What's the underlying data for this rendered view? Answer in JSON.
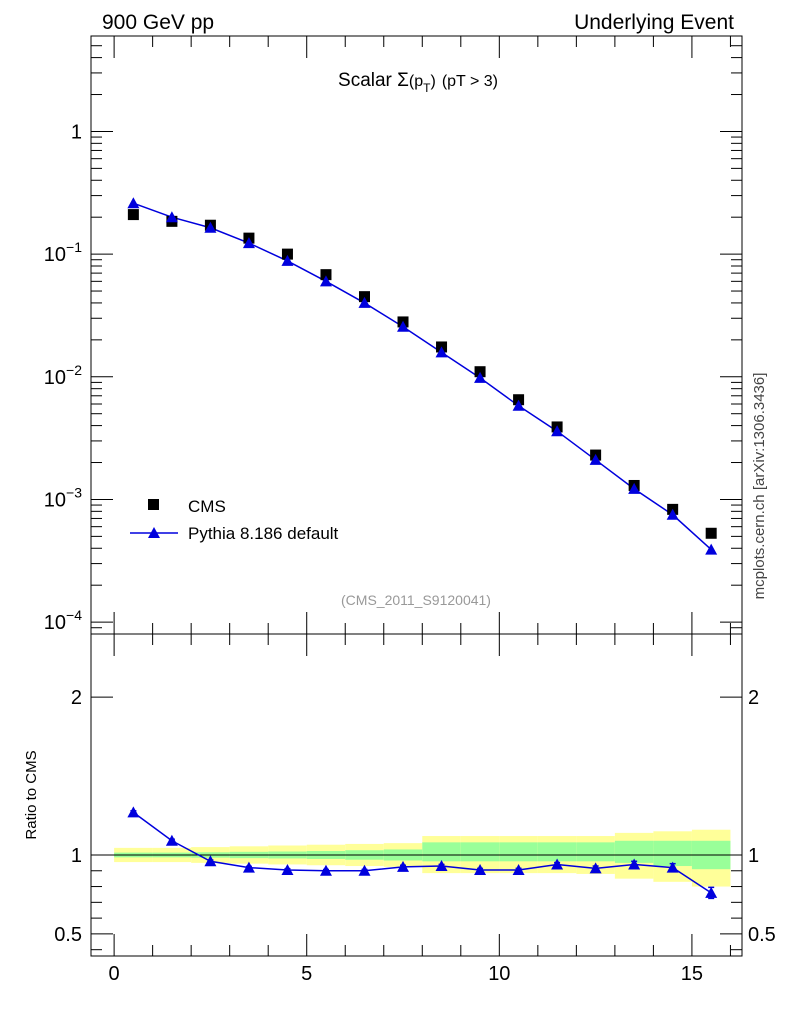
{
  "header": {
    "left": "900 GeV pp",
    "right": "Underlying Event"
  },
  "side_label": "mcplots.cern.ch [arXiv:1306.3436]",
  "watermark": "(CMS_2011_S9120041)",
  "colors": {
    "model": "#0000dd",
    "band_inner": "#99ff99",
    "band_outer": "#ffff99",
    "data": "#000000"
  },
  "chart_data": [
    {
      "type": "scatter",
      "title": "Scalar Σ(p_T) (pT >  3)",
      "title_parts": {
        "prefix": "Scalar ",
        "sigma": "Σ",
        "open": "(p",
        "sub": "T",
        "close": ")",
        "cut": "(pT >  3)"
      },
      "xlim": [
        -0.6,
        16.3
      ],
      "ylim": [
        8e-05,
        6
      ],
      "yscale": "log",
      "yticks": [
        {
          "value": 0.0001,
          "base": "10",
          "exp": "−4"
        },
        {
          "value": 0.001,
          "base": "10",
          "exp": "−3"
        },
        {
          "value": 0.01,
          "base": "10",
          "exp": "−2"
        },
        {
          "value": 0.1,
          "base": "10",
          "exp": "−1"
        },
        {
          "value": 1,
          "base": "1",
          "exp": ""
        }
      ],
      "legend_position": "bottom-left",
      "series": [
        {
          "name": "CMS",
          "marker": "square",
          "x": [
            0.5,
            1.5,
            2.5,
            3.5,
            4.5,
            5.5,
            6.5,
            7.5,
            8.5,
            9.5,
            10.5,
            11.5,
            12.5,
            13.5,
            14.5,
            15.5
          ],
          "y": [
            0.21,
            0.185,
            0.172,
            0.135,
            0.1,
            0.068,
            0.045,
            0.028,
            0.0175,
            0.011,
            0.0065,
            0.0039,
            0.0023,
            0.0013,
            0.00083,
            0.00053
          ]
        },
        {
          "name": "Pythia 8.186 default",
          "marker": "triangle",
          "x": [
            0.5,
            1.5,
            2.5,
            3.5,
            4.5,
            5.5,
            6.5,
            7.5,
            8.5,
            9.5,
            10.5,
            11.5,
            12.5,
            13.5,
            14.5,
            15.5
          ],
          "y": [
            0.26,
            0.2,
            0.164,
            0.123,
            0.088,
            0.06,
            0.04,
            0.0256,
            0.0158,
            0.0098,
            0.0058,
            0.0036,
            0.0021,
            0.00122,
            0.00075,
            0.00039
          ]
        }
      ]
    },
    {
      "type": "line",
      "ylabel": "Ratio to CMS",
      "xlim": [
        -0.6,
        16.3
      ],
      "ylim": [
        0.36,
        2.4
      ],
      "xticks": [
        0,
        5,
        10,
        15
      ],
      "yticks": [
        0.5,
        1,
        2
      ],
      "ytick_labels": [
        "0.5",
        "1",
        "2"
      ],
      "reference_line": 1,
      "bands": {
        "edges": [
          0,
          1,
          2,
          3,
          4,
          5,
          6,
          7,
          8,
          9,
          10,
          11,
          12,
          13,
          14,
          15,
          16
        ],
        "inner_lo": [
          0.985,
          0.985,
          0.983,
          0.98,
          0.978,
          0.975,
          0.97,
          0.965,
          0.96,
          0.96,
          0.96,
          0.96,
          0.96,
          0.95,
          0.93,
          0.91
        ],
        "inner_hi": [
          1.015,
          1.015,
          1.017,
          1.02,
          1.022,
          1.025,
          1.03,
          1.035,
          1.08,
          1.08,
          1.08,
          1.08,
          1.08,
          1.09,
          1.09,
          1.09
        ],
        "outer_lo": [
          0.955,
          0.955,
          0.95,
          0.945,
          0.94,
          0.935,
          0.93,
          0.925,
          0.885,
          0.885,
          0.885,
          0.885,
          0.88,
          0.85,
          0.83,
          0.8
        ],
        "outer_hi": [
          1.045,
          1.045,
          1.05,
          1.055,
          1.06,
          1.065,
          1.07,
          1.075,
          1.12,
          1.12,
          1.12,
          1.12,
          1.12,
          1.14,
          1.15,
          1.16
        ]
      },
      "series": [
        {
          "name": "Pythia 8.186 default",
          "x": [
            0.5,
            1.5,
            2.5,
            3.5,
            4.5,
            5.5,
            6.5,
            7.5,
            8.5,
            9.5,
            10.5,
            11.5,
            12.5,
            13.5,
            14.5,
            15.5
          ],
          "y": [
            1.27,
            1.09,
            0.96,
            0.92,
            0.905,
            0.9,
            0.9,
            0.925,
            0.93,
            0.905,
            0.905,
            0.94,
            0.915,
            0.94,
            0.92,
            0.76
          ],
          "err": [
            0.01,
            0.01,
            0.008,
            0.008,
            0.008,
            0.008,
            0.008,
            0.01,
            0.01,
            0.01,
            0.01,
            0.012,
            0.015,
            0.02,
            0.025,
            0.035
          ]
        }
      ]
    }
  ]
}
